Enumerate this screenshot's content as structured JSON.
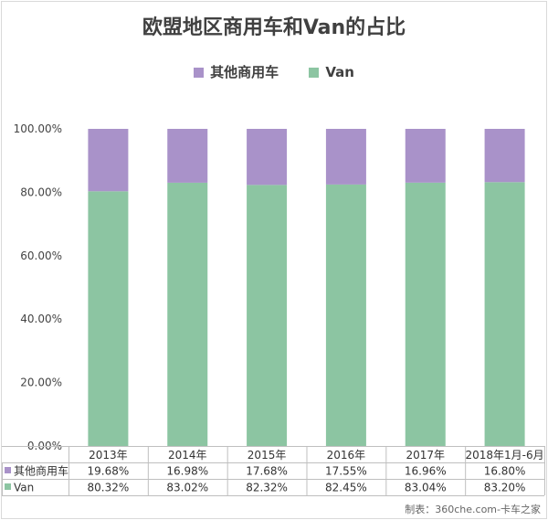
{
  "chart_data": {
    "type": "bar",
    "stacked": true,
    "title": "欧盟地区商用车和Van的占比",
    "categories": [
      "2013年",
      "2014年",
      "2015年",
      "2016年",
      "2017年",
      "2018年1月-6月"
    ],
    "series": [
      {
        "name": "Van",
        "color": "#8cc5a2",
        "values": [
          80.32,
          83.02,
          82.32,
          82.45,
          83.04,
          83.2
        ],
        "labels": [
          "80.32%",
          "83.02%",
          "82.32%",
          "82.45%",
          "83.04%",
          "83.20%"
        ]
      },
      {
        "name": "其他商用车",
        "color": "#a992c9",
        "values": [
          19.68,
          16.98,
          17.68,
          17.55,
          16.96,
          16.8
        ],
        "labels": [
          "19.68%",
          "16.98%",
          "17.68%",
          "17.55%",
          "16.96%",
          "16.80%"
        ]
      }
    ],
    "ylim": [
      0,
      100
    ],
    "yticks": [
      "0.00%",
      "20.00%",
      "40.00%",
      "60.00%",
      "80.00%",
      "100.00%"
    ],
    "legend": "top-center",
    "grid": false,
    "data_table": true
  },
  "legend_items": [
    {
      "label": "其他商用车",
      "color": "#a992c9"
    },
    {
      "label": "Van",
      "color": "#8cc5a2"
    }
  ],
  "table_rows": [
    {
      "label": "其他商用车",
      "color": "#a992c9",
      "series": 1
    },
    {
      "label": "Van",
      "color": "#8cc5a2",
      "series": 0
    }
  ],
  "credit": "制表：360che.com-卡车之家"
}
